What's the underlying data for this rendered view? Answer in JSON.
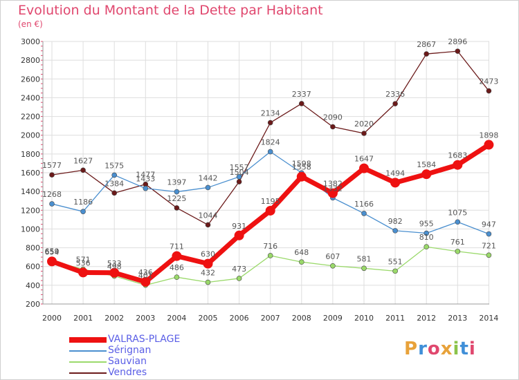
{
  "title": "Evolution du Montant de la Dette par Habitant",
  "unit_label": "(en €)",
  "logo": {
    "letters": [
      "P",
      "r",
      "o",
      "x",
      "i",
      "t",
      "i"
    ],
    "colors": [
      "#e8a23a",
      "#3f8fd8",
      "#e0476e",
      "#e8a23a",
      "#8bc34a",
      "#3f8fd8",
      "#e0476e"
    ]
  },
  "chart_data": {
    "type": "line",
    "title": "Evolution du Montant de la Dette par Habitant",
    "ylabel": "(en €)",
    "xlabel": "",
    "x": [
      "2000",
      "2001",
      "2002",
      "2003",
      "2004",
      "2005",
      "2006",
      "2007",
      "2008",
      "2009",
      "2010",
      "2011",
      "2012",
      "2013",
      "2014"
    ],
    "ylim": [
      200,
      3000
    ],
    "yticks": [
      200,
      400,
      600,
      800,
      1000,
      1200,
      1400,
      1600,
      1800,
      2000,
      2200,
      2400,
      2600,
      2800,
      3000
    ],
    "grid": true,
    "legend_position": "bottom-left",
    "series": [
      {
        "name": "Vendres",
        "color": "#6b1a1a",
        "width": 1.3,
        "marker": 3.5,
        "values": [
          1577,
          1627,
          1384,
          1477,
          1225,
          1044,
          1504,
          2134,
          2337,
          2090,
          2020,
          2336,
          2867,
          2896,
          2473
        ]
      },
      {
        "name": "Sérignan",
        "color": "#4a8fcf",
        "width": 1.3,
        "marker": 3.5,
        "values": [
          1268,
          1186,
          1575,
          1433,
          1397,
          1442,
          1557,
          1824,
          1598,
          1332,
          1166,
          982,
          955,
          1075,
          947
        ]
      },
      {
        "name": "Sauvian",
        "color": "#9ad96a",
        "width": 1.3,
        "marker": 3.5,
        "values": [
          659,
          571,
          498,
          401,
          486,
          432,
          473,
          716,
          648,
          607,
          581,
          551,
          810,
          761,
          721
        ]
      },
      {
        "name": "VALRAS-PLAGE",
        "color": "#ee1111",
        "width": 7,
        "marker": 7,
        "values": [
          654,
          536,
          533,
          436,
          711,
          630,
          931,
          1195,
          1558,
          1382,
          1647,
          1494,
          1584,
          1683,
          1898
        ]
      }
    ],
    "legend_order": [
      "VALRAS-PLAGE",
      "Sérignan",
      "Sauvian",
      "Vendres"
    ]
  }
}
